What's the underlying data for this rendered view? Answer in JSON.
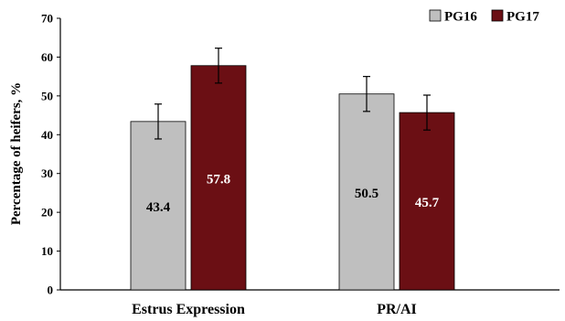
{
  "chart_data": {
    "type": "bar",
    "title": "",
    "xlabel": "",
    "ylabel": "Percentage of heifers, %",
    "ylim": [
      0,
      70
    ],
    "yticks": [
      0,
      10,
      20,
      30,
      40,
      50,
      60,
      70
    ],
    "categories": [
      "Estrus Expression",
      "PR/AI"
    ],
    "grid": false,
    "legend_position": "top-right",
    "series": [
      {
        "name": "PG16",
        "color": "#bfbfbf",
        "values": [
          43.4,
          50.5
        ],
        "errors": [
          4.5,
          4.5
        ],
        "labels": [
          "43.4",
          "50.5"
        ],
        "label_color": "#000000"
      },
      {
        "name": "PG17",
        "color": "#6b0f14",
        "values": [
          57.8,
          45.7
        ],
        "errors": [
          4.5,
          4.5
        ],
        "labels": [
          "57.8",
          "45.7"
        ],
        "label_color": "#ffffff"
      }
    ]
  }
}
